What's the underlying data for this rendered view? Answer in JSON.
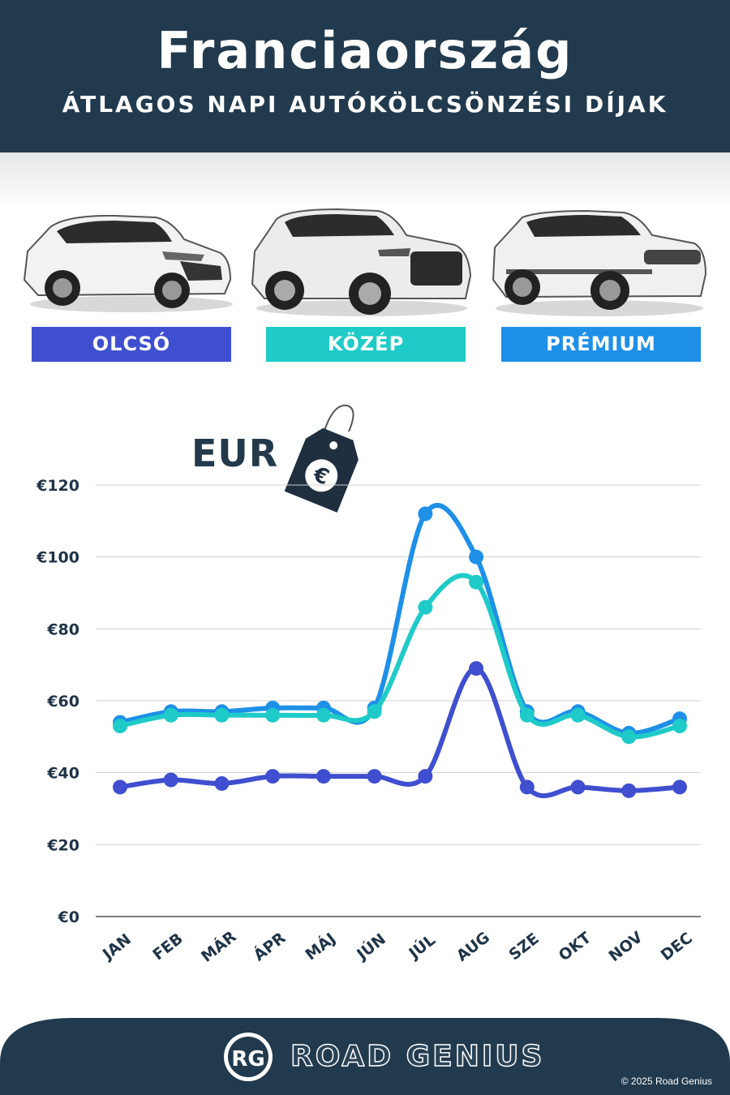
{
  "header": {
    "title": "Franciaország",
    "subtitle": "ÁTLAGOS NAPI AUTÓKÖLCSÖNZÉSI DÍJAK"
  },
  "categories_legend": [
    {
      "label": "OLCSÓ",
      "color": "#3f4fcf"
    },
    {
      "label": "KÖZÉP",
      "color": "#1ecbc8"
    },
    {
      "label": "PRÉMIUM",
      "color": "#1e90e8"
    }
  ],
  "currency": {
    "label": "EUR",
    "symbol": "€"
  },
  "chart_data": {
    "type": "line",
    "categories": [
      "JAN",
      "FEB",
      "MÁR",
      "ÁPR",
      "MÁJ",
      "JÚN",
      "JÚL",
      "AUG",
      "SZE",
      "OKT",
      "NOV",
      "DEC"
    ],
    "series": [
      {
        "name": "OLCSÓ",
        "color": "#3f4fcf",
        "values": [
          36,
          38,
          37,
          39,
          39,
          39,
          39,
          69,
          36,
          36,
          35,
          36
        ]
      },
      {
        "name": "KÖZÉP",
        "color": "#1ecbc8",
        "values": [
          53,
          56,
          56,
          56,
          56,
          57,
          86,
          93,
          56,
          56,
          50,
          53
        ]
      },
      {
        "name": "PRÉMIUM",
        "color": "#1e90e8",
        "values": [
          54,
          57,
          57,
          58,
          58,
          58,
          112,
          100,
          57,
          57,
          51,
          55
        ]
      }
    ],
    "yticks": [
      "€0",
      "€20",
      "€40",
      "€60",
      "€80",
      "€100",
      "€120"
    ],
    "ylim": [
      0,
      120
    ],
    "grid": true
  },
  "footer": {
    "logo_initials": "RG",
    "brand": "ROAD GENIUS",
    "copyright": "© 2025 Road Genius"
  }
}
